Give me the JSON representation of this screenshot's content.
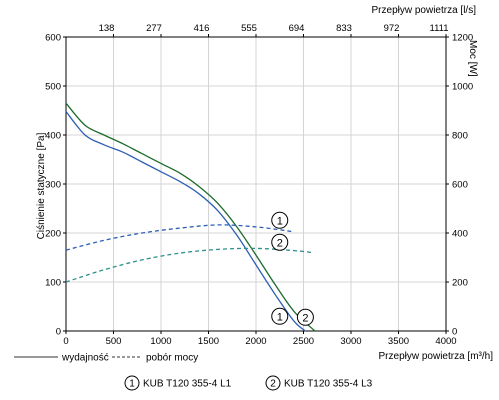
{
  "chart_data": {
    "type": "line",
    "axes": {
      "x_bottom": {
        "label": "Przepływ powietrza [m³/h]",
        "range": [
          0,
          4000
        ],
        "ticks": [
          0,
          500,
          1000,
          1500,
          2000,
          2500,
          3000,
          3500,
          4000
        ],
        "tick_labels": [
          "0",
          "500",
          "1000",
          "1500",
          "2000",
          "2500",
          "3000",
          "3500",
          "4000"
        ]
      },
      "x_top": {
        "label": "Przepływ powietrza [l/s]",
        "tick_labels": [
          "138",
          "277",
          "416",
          "555",
          "694",
          "833",
          "972",
          "1111"
        ],
        "tick_positions_m3h": [
          500,
          1000,
          1500,
          2000,
          2500,
          3000,
          3500,
          4000
        ]
      },
      "y_left": {
        "label": "Ciśnienie statyczne [Pa]",
        "range": [
          0,
          600
        ],
        "ticks": [
          0,
          100,
          200,
          300,
          400,
          500,
          600
        ],
        "tick_labels": [
          "0",
          "100",
          "200",
          "300",
          "400",
          "500",
          "600"
        ]
      },
      "y_right": {
        "label": "Moc [W]",
        "range": [
          0,
          1200
        ],
        "ticks": [
          0,
          200,
          400,
          600,
          800,
          1000,
          1200
        ],
        "tick_labels": [
          "0",
          "200",
          "400",
          "600",
          "800",
          "1000",
          "1200"
        ]
      }
    },
    "grid": true,
    "legend_position": "bottom",
    "series": [
      {
        "name": "KUB T120 355-4 L1",
        "kind": "wydajność",
        "axis": "y_left",
        "style": "solid",
        "color": "#2d5fb4",
        "x": [
          0,
          200,
          400,
          600,
          800,
          1000,
          1200,
          1400,
          1600,
          1800,
          2000,
          2200,
          2400,
          2520
        ],
        "y": [
          448,
          400,
          380,
          365,
          345,
          325,
          305,
          280,
          245,
          195,
          135,
          75,
          20,
          0
        ]
      },
      {
        "name": "KUB T120 355-4 L3",
        "kind": "wydajność",
        "axis": "y_left",
        "style": "solid",
        "color": "#1d6b2c",
        "x": [
          0,
          200,
          400,
          600,
          800,
          1000,
          1200,
          1400,
          1600,
          1800,
          2000,
          2200,
          2400,
          2620
        ],
        "y": [
          465,
          420,
          400,
          382,
          362,
          342,
          322,
          295,
          260,
          212,
          155,
          95,
          40,
          0
        ]
      },
      {
        "name": "KUB T120 355-4 L1",
        "kind": "pobór mocy",
        "axis": "y_right",
        "style": "dashed",
        "color": "#2d5fb4",
        "x": [
          0,
          400,
          800,
          1200,
          1600,
          2000,
          2400
        ],
        "y": [
          330,
          370,
          400,
          420,
          433,
          425,
          405
        ]
      },
      {
        "name": "KUB T120 355-4 L3",
        "kind": "pobór mocy",
        "axis": "y_right",
        "style": "dashed",
        "color": "#2d8f8c",
        "x": [
          0,
          400,
          800,
          1200,
          1600,
          2000,
          2400,
          2600
        ],
        "y": [
          200,
          250,
          290,
          318,
          333,
          337,
          328,
          320
        ]
      }
    ],
    "curve_markers": [
      {
        "text": "1",
        "x": 2250,
        "y": 226
      },
      {
        "text": "2",
        "x": 2250,
        "y": 181
      },
      {
        "text": "1",
        "x": 2250,
        "y": 30
      },
      {
        "text": "2",
        "x": 2520,
        "y": 28
      }
    ],
    "legend": {
      "solid_label": "wydajność",
      "dashed_label": "pobór mocy",
      "items": [
        {
          "marker": "1",
          "label": "KUB T120 355-4 L1"
        },
        {
          "marker": "2",
          "label": "KUB T120 355-4 L3"
        }
      ]
    }
  }
}
